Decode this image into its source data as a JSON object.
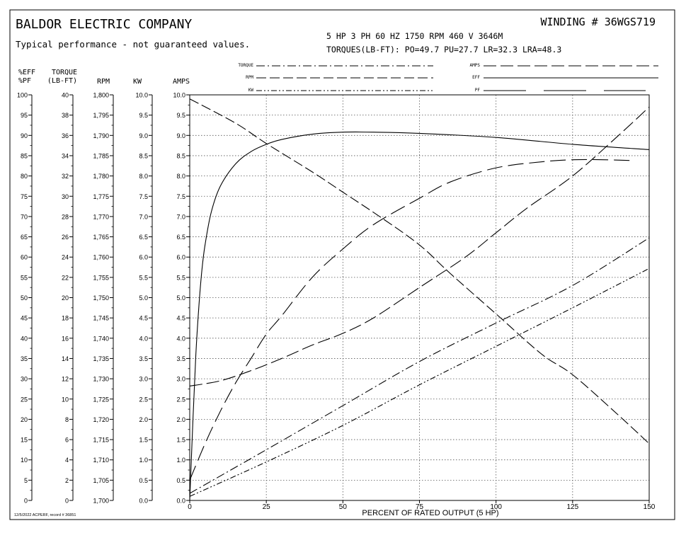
{
  "header": {
    "company": "BALDOR ELECTRIC COMPANY",
    "disclaimer": "Typical performance - not guaranteed values.",
    "winding": "WINDING # 36WGS719",
    "specs": "5 HP   3 PH   60 HZ   1750 RPM   460 V   3646M",
    "torques": "TORQUES(LB-FT): PO=49.7   PU=27.7   LR=32.3   LRA=48.3"
  },
  "legend": {
    "torque": "TORQUE",
    "rpm": "RPM",
    "kw": "KW",
    "amps": "AMPS",
    "eff": "EFF",
    "pf": "PF"
  },
  "axis_headers": {
    "eff_pf_top": "%EFF",
    "eff_pf_bottom": "%PF",
    "torque_top": "TORQUE",
    "torque_bottom": "(LB-FT)",
    "rpm": "RPM",
    "kw": "KW",
    "amps": "AMPS"
  },
  "footer": "12/5/2022 ACPERF, record # 36851",
  "chart_data": {
    "type": "line",
    "xlabel": "PERCENT OF RATED OUTPUT (5 HP)",
    "xlim": [
      0,
      150
    ],
    "x_ticks": [
      "0",
      "25",
      "50",
      "75",
      "100",
      "125",
      "150"
    ],
    "grid": true,
    "y_axes": [
      {
        "key": "eff_pf",
        "range": [
          0,
          100
        ],
        "ticks": [
          "0",
          "5",
          "10",
          "15",
          "20",
          "25",
          "30",
          "35",
          "40",
          "45",
          "50",
          "55",
          "60",
          "65",
          "70",
          "75",
          "80",
          "85",
          "90",
          "95",
          "100"
        ]
      },
      {
        "key": "torque",
        "range": [
          0,
          40
        ],
        "ticks": [
          "0",
          "2",
          "4",
          "6",
          "8",
          "10",
          "12",
          "14",
          "16",
          "18",
          "20",
          "22",
          "24",
          "26",
          "28",
          "30",
          "32",
          "34",
          "36",
          "38",
          "40"
        ]
      },
      {
        "key": "rpm",
        "range": [
          1700,
          1800
        ],
        "ticks": [
          "1,700",
          "1,705",
          "1,710",
          "1,715",
          "1,720",
          "1,725",
          "1,730",
          "1,735",
          "1,740",
          "1,745",
          "1,750",
          "1,755",
          "1,760",
          "1,765",
          "1,770",
          "1,775",
          "1,780",
          "1,785",
          "1,790",
          "1,795",
          "1,800"
        ]
      },
      {
        "key": "kw",
        "range": [
          0,
          10
        ],
        "ticks": [
          "0.0",
          "0.5",
          "1.0",
          "1.5",
          "2.0",
          "2.5",
          "3.0",
          "3.5",
          "4.0",
          "4.5",
          "5.0",
          "5.5",
          "6.0",
          "6.5",
          "7.0",
          "7.5",
          "8.0",
          "8.5",
          "9.0",
          "9.5",
          "10.0"
        ]
      },
      {
        "key": "amps",
        "range": [
          0,
          10
        ],
        "ticks": [
          "0.0",
          "0.5",
          "1.0",
          "1.5",
          "2.0",
          "2.5",
          "3.0",
          "3.5",
          "4.0",
          "4.5",
          "5.0",
          "5.5",
          "6.0",
          "6.5",
          "7.0",
          "7.5",
          "8.0",
          "8.5",
          "9.0",
          "9.5",
          "10.0"
        ]
      }
    ],
    "series": [
      {
        "name": "EFF",
        "axis": "eff_pf",
        "dash": "none",
        "points": [
          [
            0,
            0
          ],
          [
            1,
            19
          ],
          [
            2,
            36
          ],
          [
            3,
            48
          ],
          [
            4,
            57
          ],
          [
            5,
            63
          ],
          [
            7,
            71
          ],
          [
            10,
            77.5
          ],
          [
            15,
            83
          ],
          [
            20,
            86
          ],
          [
            25,
            87.8
          ],
          [
            30,
            89
          ],
          [
            40,
            90.3
          ],
          [
            50,
            90.8
          ],
          [
            60,
            90.8
          ],
          [
            75,
            90.5
          ],
          [
            100,
            89.5
          ],
          [
            125,
            87.8
          ],
          [
            150,
            86.5
          ]
        ]
      },
      {
        "name": "PF",
        "axis": "eff_pf",
        "dash": "22 8",
        "points": [
          [
            0,
            5
          ],
          [
            5,
            14
          ],
          [
            10,
            22
          ],
          [
            15,
            29
          ],
          [
            20,
            35
          ],
          [
            25,
            41
          ],
          [
            30,
            45.5
          ],
          [
            40,
            55
          ],
          [
            50,
            62
          ],
          [
            60,
            68
          ],
          [
            75,
            74.5
          ],
          [
            85,
            78.5
          ],
          [
            100,
            82
          ],
          [
            115,
            83.5
          ],
          [
            125,
            84
          ],
          [
            135,
            84
          ],
          [
            145,
            83.8
          ]
        ]
      },
      {
        "name": "AMPS",
        "axis": "amps",
        "dash": "18 6",
        "points": [
          [
            0,
            2.82
          ],
          [
            10,
            2.95
          ],
          [
            20,
            3.2
          ],
          [
            30,
            3.5
          ],
          [
            40,
            3.83
          ],
          [
            50,
            4.12
          ],
          [
            60,
            4.5
          ],
          [
            75,
            5.25
          ],
          [
            90,
            6.0
          ],
          [
            100,
            6.6
          ],
          [
            110,
            7.2
          ],
          [
            125,
            8.0
          ],
          [
            140,
            9.0
          ],
          [
            150,
            9.7
          ]
        ]
      },
      {
        "name": "RPM",
        "axis": "rpm",
        "dash": "14 5",
        "points": [
          [
            0,
            1799
          ],
          [
            15,
            1793
          ],
          [
            25,
            1788
          ],
          [
            40,
            1781
          ],
          [
            50,
            1776
          ],
          [
            62,
            1770
          ],
          [
            75,
            1763
          ],
          [
            85,
            1756
          ],
          [
            100,
            1746
          ],
          [
            115,
            1736
          ],
          [
            125,
            1731
          ],
          [
            140,
            1721
          ],
          [
            150,
            1714
          ]
        ]
      },
      {
        "name": "TORQUE",
        "axis": "torque",
        "dash": "12 4 2 4",
        "points": [
          [
            0,
            0.7
          ],
          [
            25,
            5.0
          ],
          [
            50,
            9.35
          ],
          [
            75,
            13.7
          ],
          [
            100,
            17.5
          ],
          [
            125,
            21.2
          ],
          [
            150,
            25.9
          ]
        ]
      },
      {
        "name": "KW",
        "axis": "kw",
        "dash": "8 3 2 3 2 3",
        "points": [
          [
            0,
            0.1
          ],
          [
            25,
            0.95
          ],
          [
            50,
            1.85
          ],
          [
            75,
            2.85
          ],
          [
            100,
            3.8
          ],
          [
            125,
            4.75
          ],
          [
            150,
            5.72
          ]
        ]
      }
    ]
  }
}
